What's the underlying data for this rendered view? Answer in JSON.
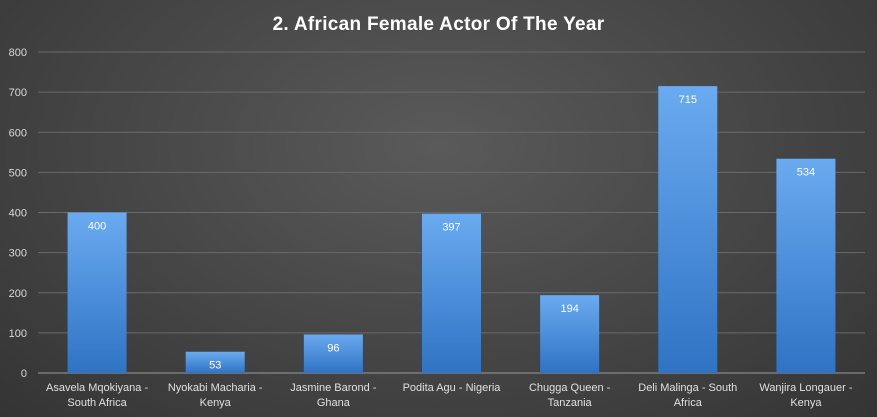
{
  "chart_data": {
    "type": "bar",
    "title": "2. African Female Actor Of The Year",
    "categories": [
      [
        "Asavela Mqokiyana -",
        "South Africa"
      ],
      [
        "Nyokabi Macharia -",
        "Kenya"
      ],
      [
        "Jasmine Barond -",
        "Ghana"
      ],
      [
        "Podita Agu - Nigeria"
      ],
      [
        "Chugga Queen -",
        "Tanzania"
      ],
      [
        "Deli Malinga - South",
        "Africa"
      ],
      [
        "Wanjira Longauer -",
        "Kenya"
      ]
    ],
    "values": [
      400,
      53,
      96,
      397,
      194,
      715,
      534
    ],
    "ylim": [
      0,
      800
    ],
    "yticks": [
      0,
      100,
      200,
      300,
      400,
      500,
      600,
      700,
      800
    ],
    "grid": true,
    "legend": "none",
    "colors": {
      "bar_top": "#6aaaf0",
      "bar_bottom": "#2f73c4"
    }
  }
}
